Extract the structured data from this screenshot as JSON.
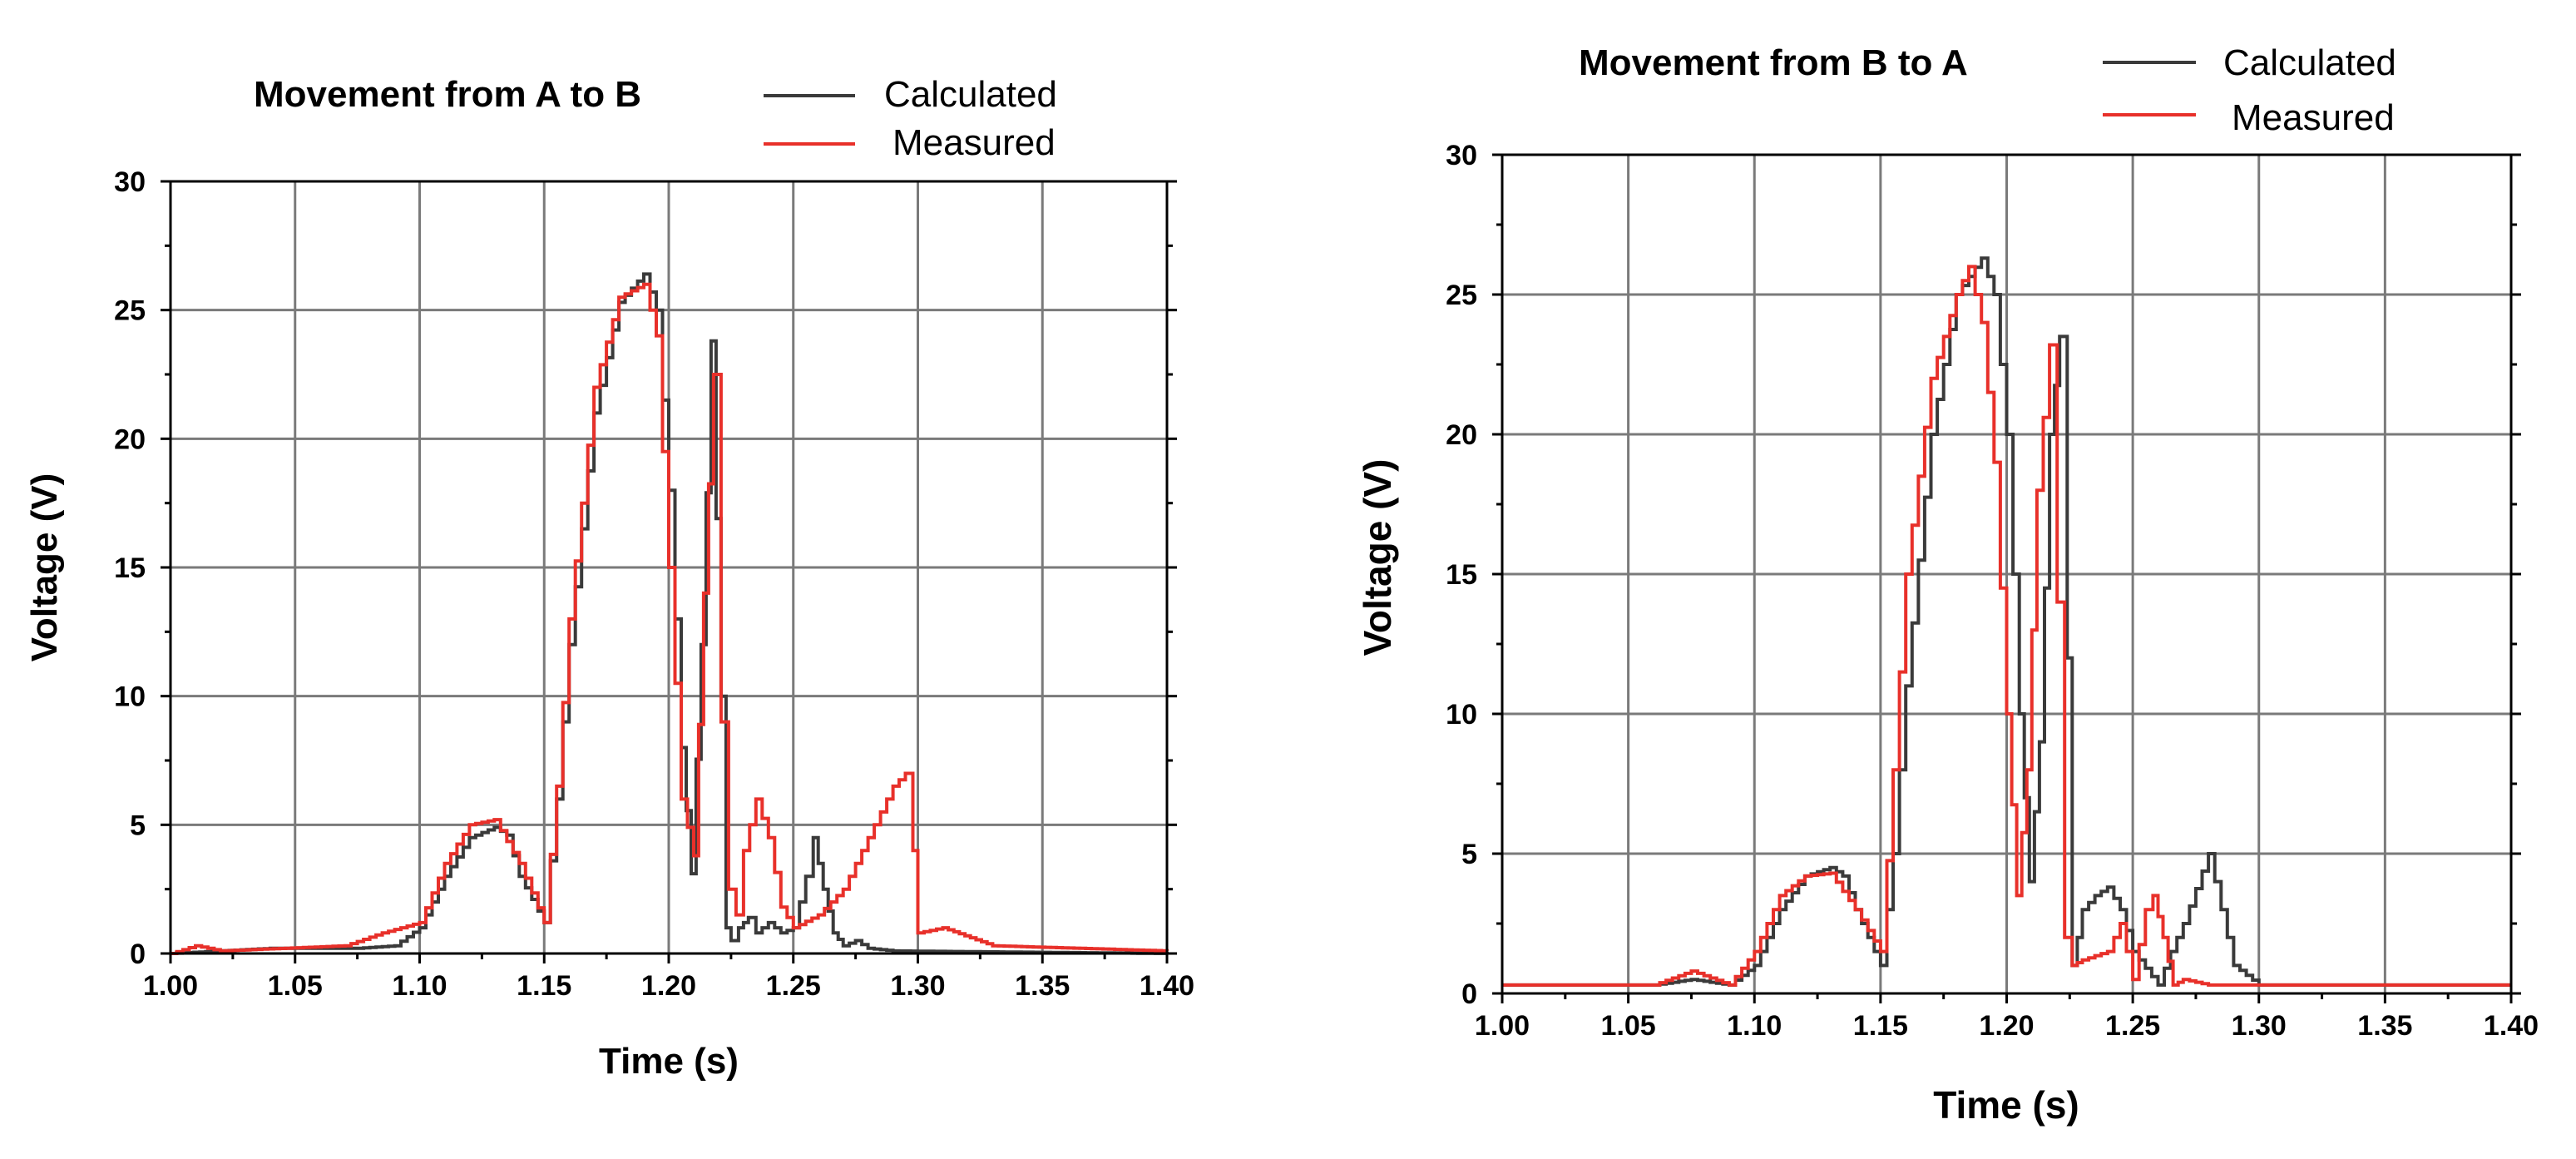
{
  "chart_data": [
    {
      "type": "line",
      "title": "Movement from A to B",
      "xlabel": "Time (s)",
      "ylabel": "Voltage (V)",
      "xlim": [
        1.0,
        1.4
      ],
      "ylim": [
        0,
        30
      ],
      "xticks": [
        "1.00",
        "1.05",
        "1.10",
        "1.15",
        "1.20",
        "1.25",
        "1.30",
        "1.35",
        "1.40"
      ],
      "yticks": [
        "0",
        "5",
        "10",
        "15",
        "20",
        "25",
        "30"
      ],
      "grid": true,
      "legend_position": "top-right",
      "series": [
        {
          "name": "Calculated",
          "color": "#3a3a3a",
          "x": [
            1.0,
            1.04,
            1.075,
            1.09,
            1.1,
            1.11,
            1.12,
            1.13,
            1.135,
            1.14,
            1.15,
            1.155,
            1.16,
            1.17,
            1.18,
            1.19,
            1.195,
            1.2,
            1.205,
            1.209,
            1.213,
            1.217,
            1.221,
            1.223,
            1.225,
            1.228,
            1.232,
            1.235,
            1.24,
            1.245,
            1.25,
            1.255,
            1.258,
            1.262,
            1.266,
            1.27,
            1.275,
            1.28,
            1.29,
            1.4
          ],
          "y": [
            0,
            0.2,
            0.2,
            0.3,
            1.0,
            3.0,
            4.5,
            4.9,
            4.6,
            3.0,
            1.2,
            6.0,
            12.0,
            21.0,
            25.3,
            26.4,
            25.0,
            18.0,
            8.0,
            3.1,
            12.0,
            23.8,
            10.0,
            1.0,
            0.5,
            1.0,
            1.4,
            0.8,
            1.2,
            0.8,
            1.0,
            3.0,
            4.5,
            2.5,
            0.8,
            0.3,
            0.5,
            0.2,
            0.1,
            0
          ]
        },
        {
          "name": "Measured",
          "color": "#e8302a",
          "x": [
            1.0,
            1.01,
            1.02,
            1.07,
            1.085,
            1.1,
            1.11,
            1.12,
            1.13,
            1.14,
            1.15,
            1.155,
            1.16,
            1.17,
            1.18,
            1.19,
            1.195,
            1.2,
            1.205,
            1.21,
            1.214,
            1.218,
            1.221,
            1.224,
            1.227,
            1.23,
            1.235,
            1.24,
            1.245,
            1.25,
            1.26,
            1.27,
            1.28,
            1.29,
            1.295,
            1.298,
            1.3,
            1.31,
            1.33,
            1.4
          ],
          "y": [
            0,
            0.3,
            0.1,
            0.3,
            0.8,
            1.2,
            3.5,
            5.0,
            5.2,
            3.5,
            1.2,
            6.5,
            13.0,
            22.0,
            25.5,
            26.0,
            24.0,
            15.0,
            6.0,
            3.8,
            14.0,
            22.5,
            9.0,
            2.5,
            1.5,
            4.0,
            6.0,
            4.5,
            1.8,
            1.0,
            1.5,
            2.5,
            4.5,
            6.5,
            7.0,
            4.0,
            0.8,
            1.0,
            0.3,
            0.1
          ]
        }
      ]
    },
    {
      "type": "line",
      "title": "Movement from B to A",
      "xlabel": "Time (s)",
      "ylabel": "Voltage (V)",
      "xlim": [
        1.0,
        1.4
      ],
      "ylim": [
        0,
        30
      ],
      "xticks": [
        "1.00",
        "1.05",
        "1.10",
        "1.15",
        "1.20",
        "1.25",
        "1.30",
        "1.35",
        "1.40"
      ],
      "yticks": [
        "0",
        "5",
        "10",
        "15",
        "20",
        "25",
        "30"
      ],
      "grid": true,
      "legend_position": "top-right",
      "series": [
        {
          "name": "Calculated",
          "color": "#3a3a3a",
          "x": [
            1.0,
            1.06,
            1.075,
            1.09,
            1.1,
            1.11,
            1.12,
            1.13,
            1.135,
            1.14,
            1.15,
            1.155,
            1.16,
            1.17,
            1.18,
            1.19,
            1.195,
            1.2,
            1.205,
            1.209,
            1.213,
            1.217,
            1.221,
            1.224,
            1.226,
            1.23,
            1.235,
            1.24,
            1.245,
            1.25,
            1.26,
            1.265,
            1.27,
            1.28,
            1.285,
            1.29,
            1.3,
            1.4
          ],
          "y": [
            0.3,
            0.3,
            0.5,
            0.3,
            1.0,
            3.0,
            4.2,
            4.5,
            4.2,
            3.0,
            1.0,
            5.0,
            11.0,
            20.0,
            25.0,
            26.3,
            25.0,
            20.0,
            10.0,
            4.0,
            9.0,
            20.0,
            23.5,
            12.0,
            1.0,
            3.0,
            3.5,
            3.8,
            3.0,
            1.5,
            0.3,
            1.5,
            2.5,
            5.0,
            3.0,
            1.0,
            0.3,
            0.3
          ]
        },
        {
          "name": "Measured",
          "color": "#e8302a",
          "x": [
            1.0,
            1.06,
            1.075,
            1.09,
            1.1,
            1.11,
            1.12,
            1.13,
            1.14,
            1.15,
            1.155,
            1.16,
            1.17,
            1.18,
            1.185,
            1.19,
            1.195,
            1.2,
            1.204,
            1.208,
            1.212,
            1.217,
            1.22,
            1.223,
            1.226,
            1.23,
            1.24,
            1.245,
            1.25,
            1.255,
            1.258,
            1.262,
            1.266,
            1.27,
            1.28,
            1.3,
            1.4
          ],
          "y": [
            0.3,
            0.3,
            0.8,
            0.3,
            1.5,
            3.5,
            4.2,
            4.3,
            3.0,
            1.5,
            8.0,
            15.0,
            22.0,
            25.0,
            26.0,
            24.0,
            19.0,
            10.0,
            3.5,
            8.0,
            18.0,
            23.2,
            14.0,
            2.0,
            1.0,
            1.2,
            1.5,
            2.5,
            0.5,
            3.0,
            3.5,
            2.0,
            0.3,
            0.5,
            0.3,
            0.3,
            0.3
          ]
        }
      ]
    }
  ]
}
